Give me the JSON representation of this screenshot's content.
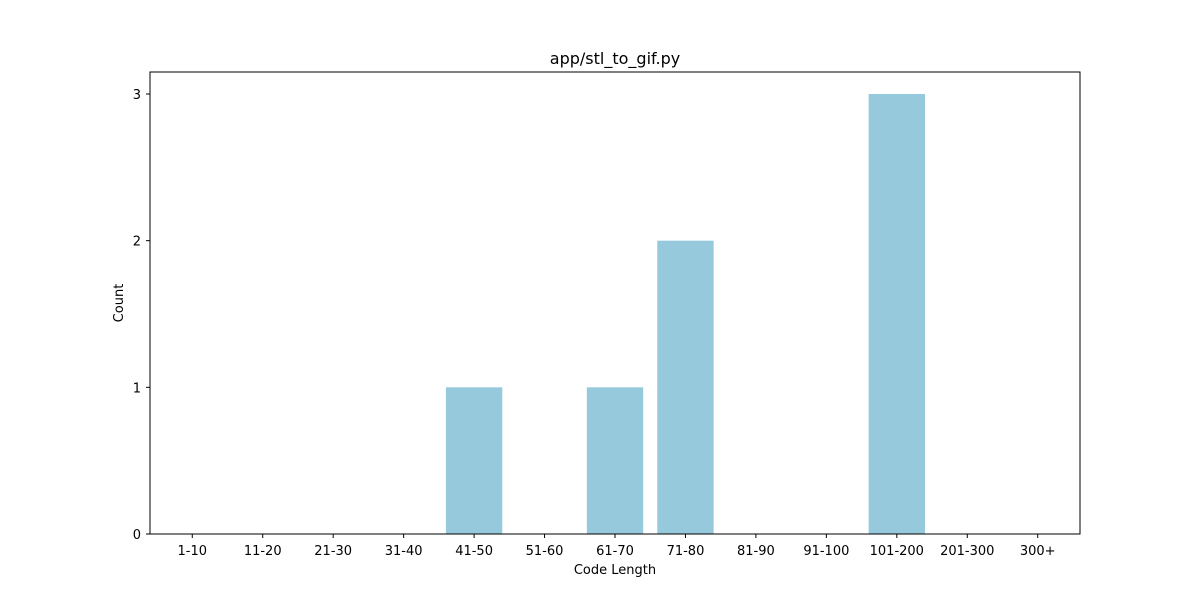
{
  "chart_data": {
    "type": "bar",
    "title": "app/stl_to_gif.py",
    "xlabel": "Code Length",
    "ylabel": "Count",
    "categories": [
      "1-10",
      "11-20",
      "21-30",
      "31-40",
      "41-50",
      "51-60",
      "61-70",
      "71-80",
      "81-90",
      "91-100",
      "101-200",
      "201-300",
      "300+"
    ],
    "values": [
      0,
      0,
      0,
      0,
      1,
      0,
      1,
      2,
      0,
      0,
      3,
      0,
      0
    ],
    "ylim": [
      0,
      3.15
    ],
    "yticks": [
      "0",
      "1",
      "2",
      "3"
    ],
    "grid": false,
    "bar_color": "#96c9dc"
  }
}
